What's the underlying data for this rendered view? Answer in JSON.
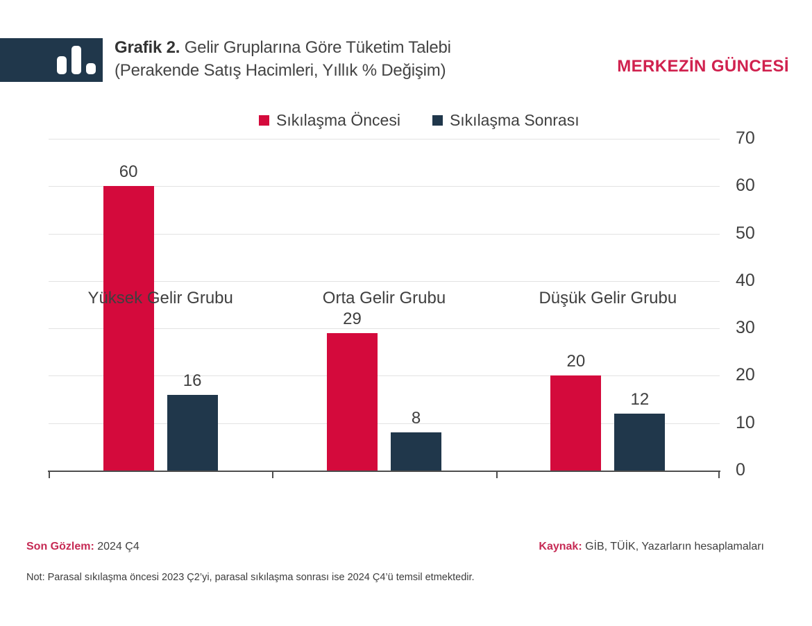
{
  "header": {
    "title_prefix": "Grafik 2.",
    "title_rest": " Gelir Gruplarına Göre Tüketim Talebi",
    "title_line2": "(Perakende Satış Hacimleri, Yıllık % Değişim)",
    "brand": "MERKEZİN GÜNCESİ",
    "logo_icon": "bar-chart-icon"
  },
  "colors": {
    "pre_tightening_red": "#d40a3c",
    "post_tightening_navy": "#20374b",
    "brand_red": "#d0214e",
    "footer_label_red": "#c62a54",
    "grid_gray": "#e2e2e2",
    "axis_gray": "#4d4d4d",
    "text_gray": "#3f3f3f",
    "logo_navy": "#20374b"
  },
  "chart_data": {
    "type": "bar",
    "categories": [
      "Yüksek Gelir Grubu",
      "Orta Gelir Grubu",
      "Düşük Gelir Grubu"
    ],
    "series": [
      {
        "name": "Sıkılaşma Öncesi",
        "color": "#d40a3c",
        "values": [
          60,
          29,
          20
        ]
      },
      {
        "name": "Sıkılaşma Sonrası",
        "color": "#20374b",
        "values": [
          16,
          8,
          12
        ]
      }
    ],
    "title": "Grafik 2. Gelir Gruplarına Göre Tüketim Talebi (Perakende Satış Hacimleri, Yıllık % Değişim)",
    "xlabel": "",
    "ylabel": "",
    "ylim": [
      0,
      70
    ],
    "yticks": [
      0,
      10,
      20,
      30,
      40,
      50,
      60,
      70
    ],
    "grid": true,
    "legend_position": "top-center",
    "value_labels": true,
    "y_axis_side": "right"
  },
  "footer": {
    "observation_label": "Son Gözlem:",
    "observation_value": "2024 Ç4",
    "source_label": "Kaynak:",
    "source_value": "GİB, TÜİK, Yazarların hesaplamaları",
    "note": "Not: Parasal sıkılaşma öncesi 2023 Ç2’yi, parasal sıkılaşma sonrası ise 2024 Ç4’ü temsil etmektedir."
  }
}
